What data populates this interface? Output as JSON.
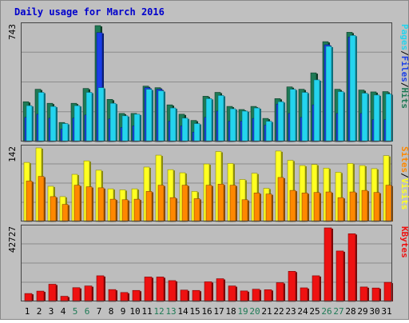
{
  "title": "Daily usage for March 2016",
  "colors": {
    "background": "#c0c0c0",
    "panel": "#bdbdbd",
    "title": "#0000cc",
    "hits": "#1e7a55",
    "files": "#1a3ee8",
    "pages": "#24d4ee",
    "visits": "#ffff22",
    "sites": "#ff8800",
    "kbytes": "#ee1111",
    "weekend_label": "#1e7a55",
    "weekday_label": "#000000"
  },
  "chart_data": [
    {
      "type": "bar",
      "name": "hits-files-pages",
      "ymax_label": "743",
      "ymax": 743,
      "right_labels": [
        "Pages",
        "/",
        "Files",
        "/",
        "Hits"
      ],
      "right_label_colors": [
        "#24d4ee",
        "#000000",
        "#1a3ee8",
        "#000000",
        "#1e7a55"
      ],
      "series": [
        {
          "name": "Hits",
          "values": [
            255,
            335,
            245,
            122,
            245,
            340,
            743,
            270,
            180,
            180,
            355,
            345,
            235,
            175,
            135,
            290,
            315,
            225,
            205,
            225,
            148,
            275,
            350,
            335,
            440,
            640,
            335,
            700,
            330,
            318,
            320
          ]
        },
        {
          "name": "Files",
          "values": [
            155,
            175,
            150,
            80,
            150,
            170,
            698,
            145,
            90,
            100,
            345,
            335,
            130,
            100,
            60,
            155,
            195,
            130,
            130,
            148,
            105,
            240,
            180,
            155,
            235,
            620,
            180,
            670,
            180,
            140,
            140
          ]
        },
        {
          "name": "Pages",
          "values": [
            230,
            315,
            225,
            115,
            230,
            315,
            345,
            245,
            165,
            175,
            335,
            325,
            215,
            150,
            115,
            275,
            295,
            210,
            195,
            215,
            130,
            255,
            335,
            315,
            395,
            610,
            320,
            680,
            310,
            298,
            305
          ]
        }
      ]
    },
    {
      "type": "bar",
      "name": "visits-sites",
      "ymax_label": "142",
      "ymax": 142,
      "right_labels": [
        "Sites",
        "/",
        "Visits"
      ],
      "right_label_colors": [
        "#ff8800",
        "#000000",
        "#ffff22"
      ],
      "series": [
        {
          "name": "Visits",
          "values": [
            114,
            142,
            68,
            48,
            91,
            117,
            99,
            63,
            61,
            63,
            105,
            128,
            100,
            94,
            58,
            111,
            135,
            112,
            81,
            93,
            64,
            136,
            118,
            108,
            110,
            103,
            95,
            112,
            108,
            102,
            127
          ]
        },
        {
          "name": "Sites",
          "values": [
            78,
            87,
            48,
            33,
            70,
            67,
            65,
            43,
            42,
            43,
            58,
            70,
            46,
            70,
            44,
            70,
            72,
            70,
            42,
            55,
            53,
            85,
            60,
            55,
            56,
            57,
            46,
            57,
            60,
            56,
            70
          ]
        }
      ]
    },
    {
      "type": "bar",
      "name": "kbytes",
      "ymax_label": "42727",
      "ymax": 42727,
      "right_labels": [
        "KBytes"
      ],
      "right_label_colors": [
        "#ee1111"
      ],
      "series": [
        {
          "name": "KBytes",
          "values": [
            4600,
            6000,
            10000,
            3000,
            8000,
            9000,
            14900,
            6900,
            5200,
            6400,
            14200,
            14200,
            12100,
            6600,
            6400,
            11400,
            13200,
            9000,
            6100,
            7100,
            6800,
            10900,
            17500,
            7900,
            14900,
            42727,
            29300,
            39300,
            8400,
            7800,
            11100
          ]
        }
      ]
    }
  ],
  "x_labels": [
    "1",
    "2",
    "3",
    "4",
    "5",
    "6",
    "7",
    "8",
    "9",
    "10",
    "11",
    "12",
    "13",
    "14",
    "15",
    "16",
    "17",
    "18",
    "19",
    "20",
    "21",
    "22",
    "23",
    "24",
    "25",
    "26",
    "27",
    "28",
    "29",
    "30",
    "31"
  ],
  "weekend_days": [
    5,
    6,
    12,
    13,
    19,
    20,
    26,
    27
  ]
}
